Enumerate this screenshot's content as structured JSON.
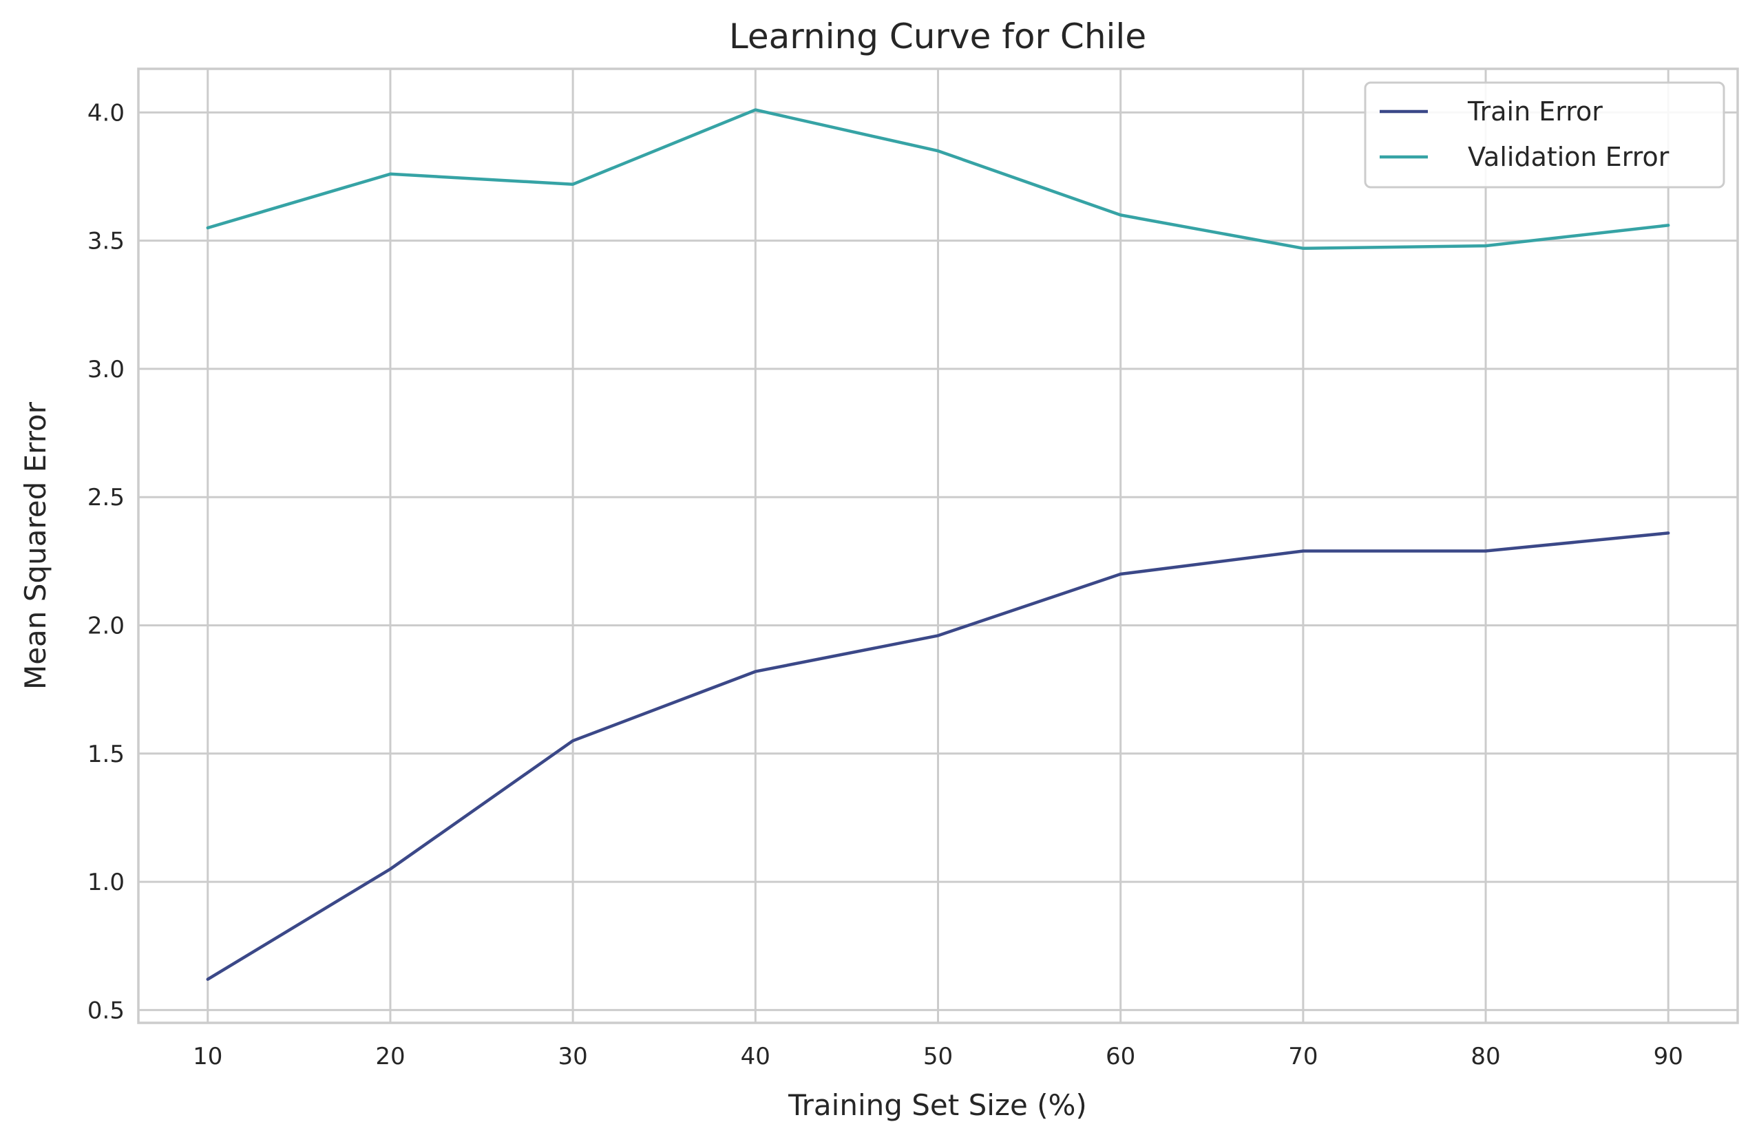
{
  "chart_data": {
    "type": "line",
    "title": "Learning Curve for Chile",
    "xlabel": "Training Set Size (%)",
    "ylabel": "Mean Squared Error",
    "x": [
      10,
      20,
      30,
      40,
      50,
      60,
      70,
      80,
      90
    ],
    "xlim": [
      6.2,
      93.8
    ],
    "ylim": [
      0.45,
      4.17
    ],
    "xticks": [
      10,
      20,
      30,
      40,
      50,
      60,
      70,
      80,
      90
    ],
    "yticks": [
      0.5,
      1.0,
      1.5,
      2.0,
      2.5,
      3.0,
      3.5,
      4.0
    ],
    "ytick_labels": [
      "0.5",
      "1.0",
      "1.5",
      "2.0",
      "2.5",
      "3.0",
      "3.5",
      "4.0"
    ],
    "grid": true,
    "legend_position": "top-right",
    "series": [
      {
        "name": "Train Error",
        "color": "#3b4888",
        "values": [
          0.62,
          1.05,
          1.55,
          1.82,
          1.96,
          2.2,
          2.29,
          2.29,
          2.36
        ]
      },
      {
        "name": "Validation Error",
        "color": "#36a3a5",
        "values": [
          3.55,
          3.76,
          3.72,
          4.01,
          3.85,
          3.6,
          3.47,
          3.48,
          3.56
        ]
      }
    ]
  }
}
